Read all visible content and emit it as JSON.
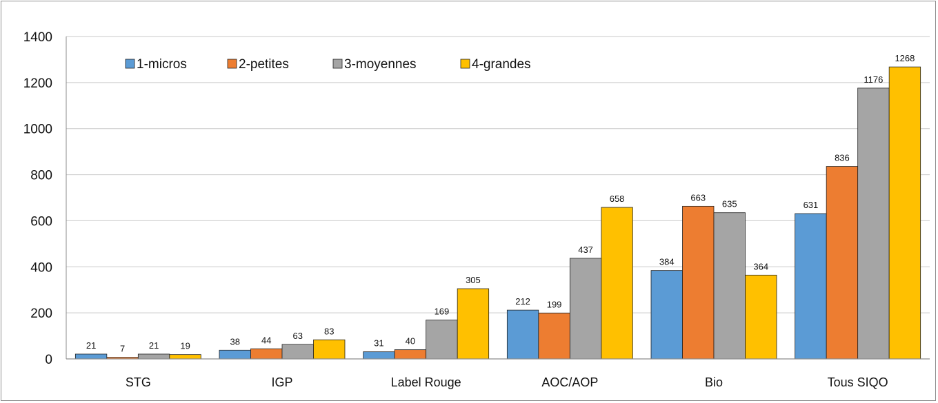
{
  "chart_data": {
    "type": "bar",
    "categories": [
      "STG",
      "IGP",
      "Label Rouge",
      "AOC/AOP",
      "Bio",
      "Tous SIQO"
    ],
    "series": [
      {
        "name": "1-micros",
        "color": "#5b9bd5",
        "values": [
          21,
          38,
          31,
          212,
          384,
          631
        ]
      },
      {
        "name": "2-petites",
        "color": "#ed7d31",
        "values": [
          7,
          44,
          40,
          199,
          663,
          836
        ]
      },
      {
        "name": "3-moyennes",
        "color": "#a5a5a5",
        "values": [
          21,
          63,
          169,
          437,
          635,
          1176
        ]
      },
      {
        "name": "4-grandes",
        "color": "#ffc000",
        "values": [
          19,
          83,
          305,
          658,
          364,
          1268
        ]
      }
    ],
    "yticks": [
      0,
      200,
      400,
      600,
      800,
      1000,
      1200,
      1400
    ],
    "ylim": [
      0,
      1400
    ],
    "grid": true,
    "legend_position": "top-left"
  }
}
